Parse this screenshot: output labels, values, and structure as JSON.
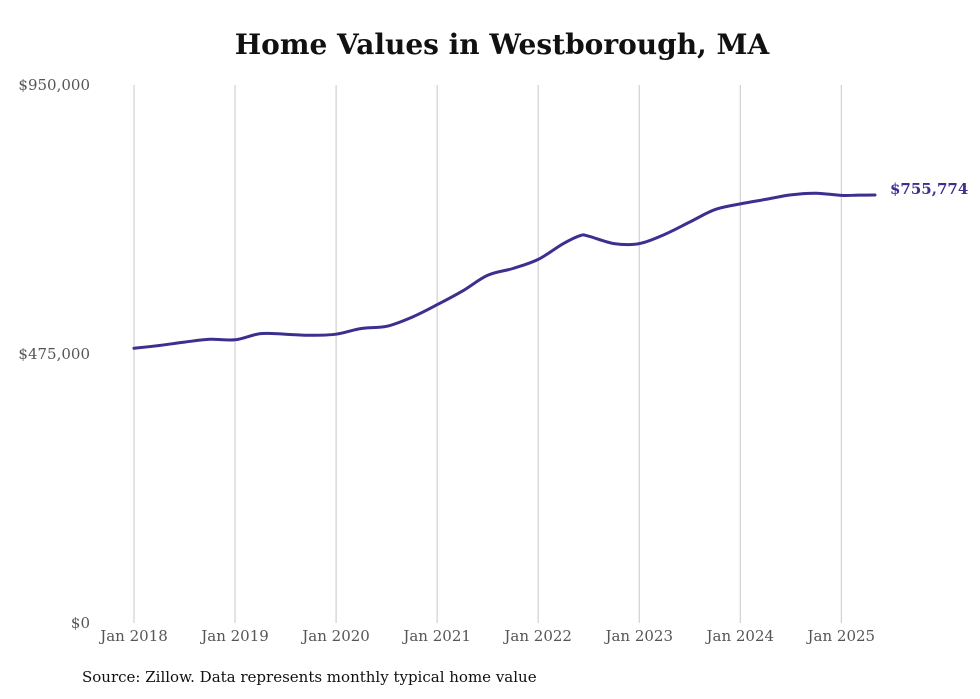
{
  "title": "Home Values in Westborough, MA",
  "source": "Source: Zillow. Data represents monthly typical home value",
  "line_color": "#3b2f8f",
  "grid_color": "#c8c8c8",
  "chart_data": {
    "type": "line",
    "title": "Home Values in Westborough, MA",
    "xlabel": "",
    "ylabel": "",
    "ylim": [
      0,
      950000
    ],
    "y_ticks": [
      0,
      475000,
      950000
    ],
    "y_tick_labels": [
      "$0",
      "$475,000",
      "$950,000"
    ],
    "x_range": [
      "2018-01",
      "2025-05"
    ],
    "x_ticks": [
      "2018-01",
      "2019-01",
      "2020-01",
      "2021-01",
      "2022-01",
      "2023-01",
      "2024-01",
      "2025-01"
    ],
    "x_tick_labels": [
      "Jan 2018",
      "Jan 2019",
      "Jan 2020",
      "Jan 2021",
      "Jan 2022",
      "Jan 2023",
      "Jan 2024",
      "Jan 2025"
    ],
    "grid": "vertical",
    "end_label": "$755,774",
    "series": [
      {
        "points": [
          [
            "2018-01",
            485000
          ],
          [
            "2018-04",
            490000
          ],
          [
            "2018-07",
            496000
          ],
          [
            "2018-10",
            501000
          ],
          [
            "2019-01",
            500000
          ],
          [
            "2019-04",
            511000
          ],
          [
            "2019-07",
            510000
          ],
          [
            "2019-10",
            508000
          ],
          [
            "2020-01",
            510000
          ],
          [
            "2020-04",
            520000
          ],
          [
            "2020-07",
            524000
          ],
          [
            "2020-10",
            540000
          ],
          [
            "2021-01",
            562000
          ],
          [
            "2021-04",
            586000
          ],
          [
            "2021-07",
            614000
          ],
          [
            "2021-10",
            626000
          ],
          [
            "2022-01",
            642000
          ],
          [
            "2022-04",
            670000
          ],
          [
            "2022-06",
            684000
          ],
          [
            "2022-07",
            683000
          ],
          [
            "2022-10",
            670000
          ],
          [
            "2023-01",
            670000
          ],
          [
            "2023-04",
            686000
          ],
          [
            "2023-07",
            708000
          ],
          [
            "2023-10",
            730000
          ],
          [
            "2024-01",
            740000
          ],
          [
            "2024-04",
            748000
          ],
          [
            "2024-07",
            756000
          ],
          [
            "2024-10",
            759000
          ],
          [
            "2025-01",
            755000
          ],
          [
            "2025-03",
            755500
          ],
          [
            "2025-05",
            755774
          ]
        ]
      }
    ]
  }
}
